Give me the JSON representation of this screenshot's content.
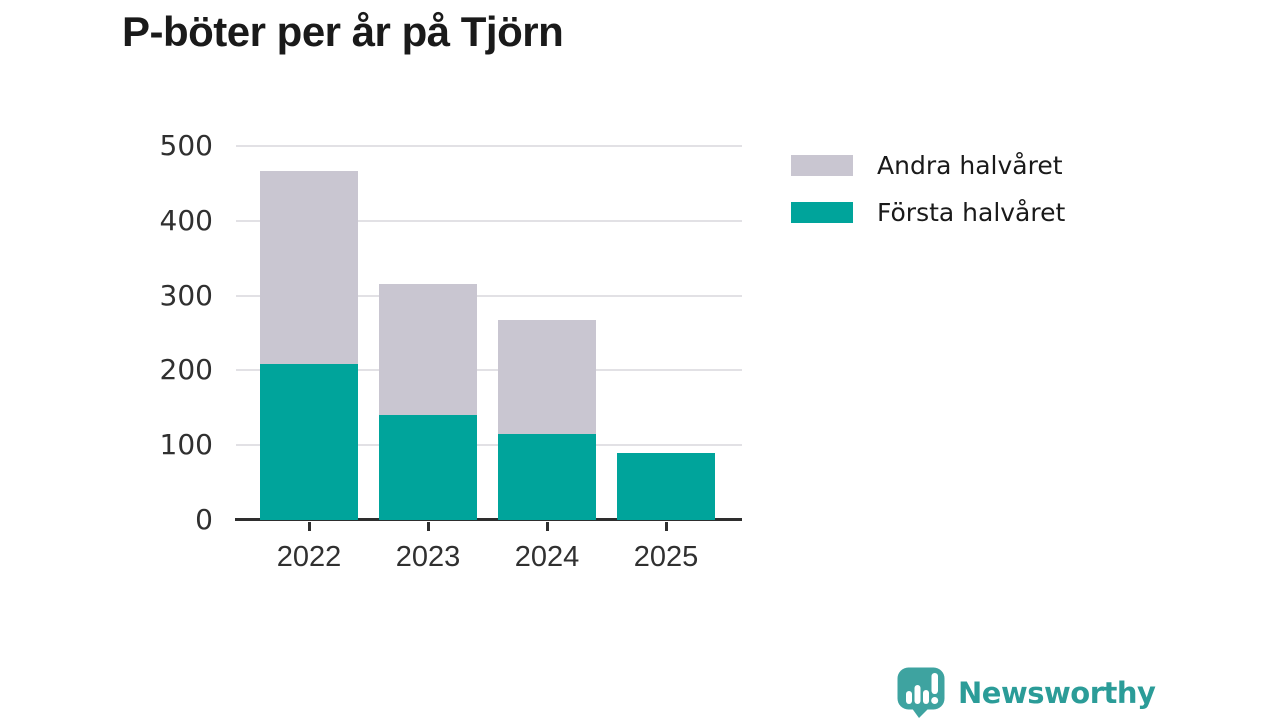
{
  "title": "P-böter per år på Tjörn",
  "chart_data": {
    "type": "bar",
    "stacked": true,
    "title": "P-böter per år på Tjörn",
    "categories": [
      "2022",
      "2023",
      "2024",
      "2025"
    ],
    "series": [
      {
        "name": "Första halvåret",
        "color": "#00a49b",
        "values": [
          208,
          141,
          115,
          90
        ]
      },
      {
        "name": "Andra halvåret",
        "color": "#c9c6d1",
        "values": [
          259,
          174,
          152,
          0
        ]
      }
    ],
    "totals": [
      467,
      315,
      267,
      90
    ],
    "xlabel": "",
    "ylabel": "",
    "ylim": [
      0,
      500
    ],
    "yticks": [
      0,
      100,
      200,
      300,
      400,
      500
    ],
    "grid": "horizontal",
    "legend_position": "top-right"
  },
  "legend": [
    {
      "label": "Andra halvåret",
      "color": "#c9c6d1"
    },
    {
      "label": "Första halvåret",
      "color": "#00a49b"
    }
  ],
  "colors": {
    "first_half": "#00a49b",
    "second_half": "#c9c6d1",
    "gridline": "#e2e1e5",
    "axis": "#2e2e2e",
    "text": "#1a1a1a",
    "logo": "#2b9c98"
  },
  "branding": {
    "logo_text": "Newsworthy",
    "logo_icon": "bar-chart-speech-bubble-icon"
  }
}
